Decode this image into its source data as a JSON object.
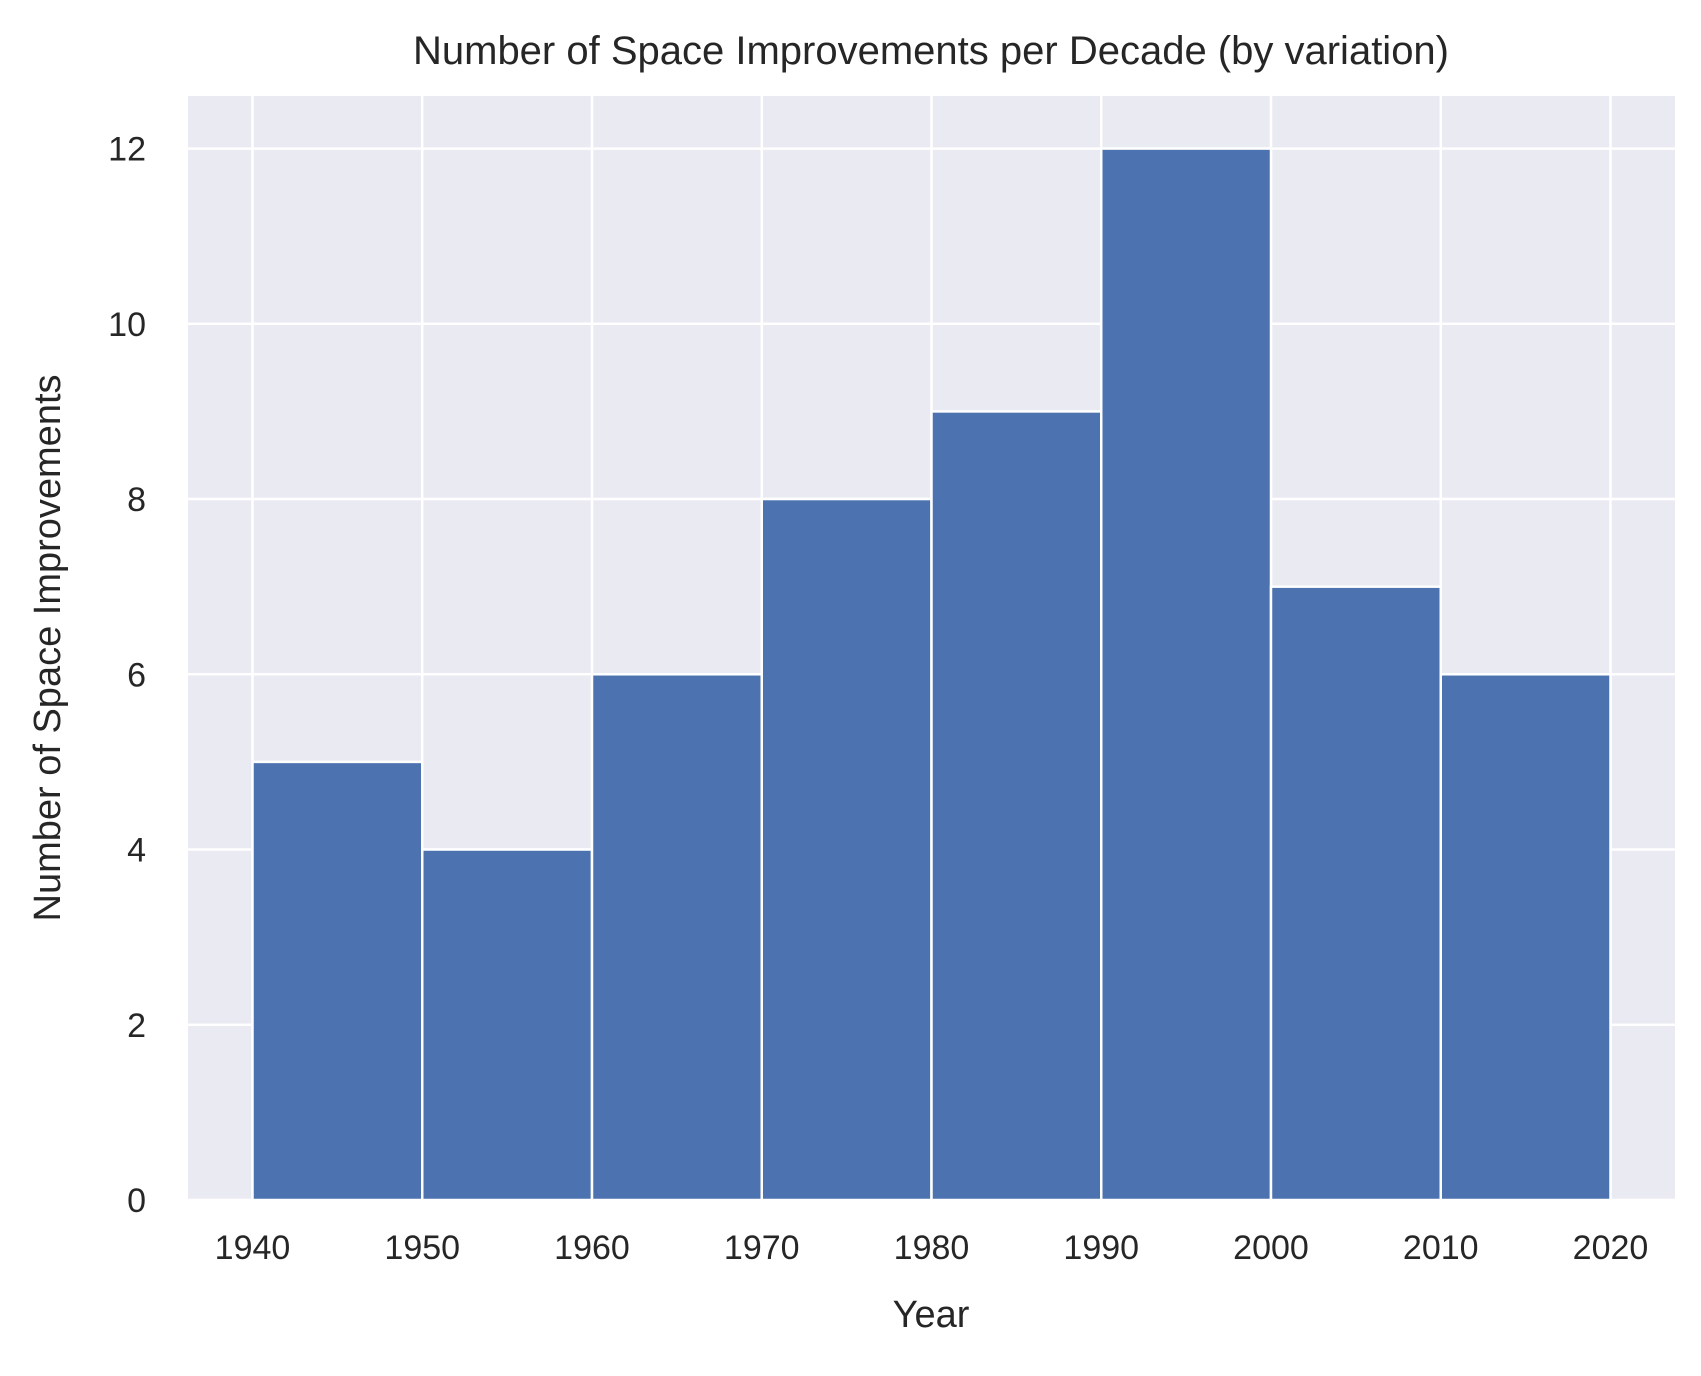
{
  "chart_data": {
    "type": "bar",
    "title": "Number of Space Improvements per Decade (by variation)",
    "xlabel": "Year",
    "ylabel": "Number of Space Improvements",
    "bin_edges": [
      1940,
      1950,
      1960,
      1970,
      1980,
      1990,
      2000,
      2010,
      2020
    ],
    "values": [
      5,
      4,
      6,
      8,
      9,
      12,
      7,
      6
    ],
    "xticks": [
      "1940",
      "1950",
      "1960",
      "1970",
      "1980",
      "1990",
      "2000",
      "2010",
      "2020"
    ],
    "yticks": [
      "0",
      "2",
      "4",
      "6",
      "8",
      "10",
      "12"
    ],
    "xlim": [
      1936.2,
      2023.8
    ],
    "ylim": [
      0,
      12.6
    ],
    "grid": true,
    "legend": "none",
    "colors": {
      "bar": "#4c72b0",
      "plot_background": "#eaeaf2",
      "grid": "#ffffff",
      "text": "#262626"
    }
  }
}
